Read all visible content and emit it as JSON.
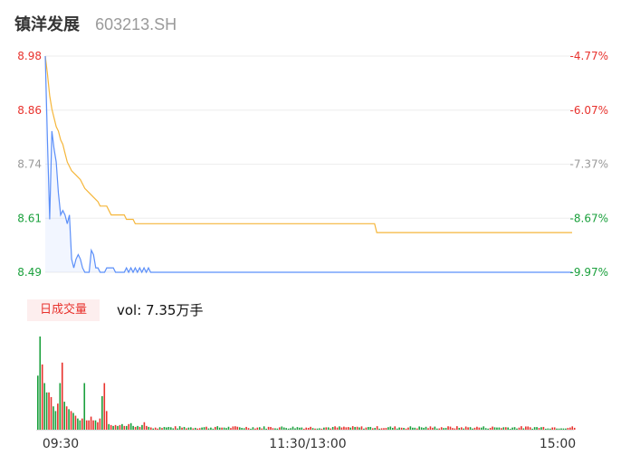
{
  "header": {
    "name": "镇洋发展",
    "code": "603213.SH"
  },
  "volume_panel": {
    "badge": "日成交量",
    "vol_label": "vol: 7.35万手"
  },
  "colors": {
    "price_line": "#5b8ff9",
    "avg_line": "#f5b63a",
    "up": "#e8322d",
    "down": "#1aa03c",
    "neutral": "#999999",
    "grid": "#eeeeee"
  },
  "chart_data": [
    {
      "type": "line",
      "title": "",
      "ylim": [
        8.49,
        8.98
      ],
      "y_ticks": [
        {
          "price": "8.98",
          "pct": "-4.77%",
          "color": "#e8322d"
        },
        {
          "price": "8.86",
          "pct": "-6.07%",
          "color": "#e8322d"
        },
        {
          "price": "8.74",
          "pct": "-7.37%",
          "color": "#999999"
        },
        {
          "price": "8.61",
          "pct": "-8.67%",
          "color": "#1aa03c"
        },
        {
          "price": "8.49",
          "pct": "-9.97%",
          "color": "#1aa03c"
        }
      ],
      "x_range": [
        0,
        240
      ],
      "series": [
        {
          "points": [
            [
              0,
              8.98
            ],
            [
              1,
              8.79
            ],
            [
              2,
              8.61
            ],
            [
              3,
              8.81
            ],
            [
              4,
              8.77
            ],
            [
              5,
              8.74
            ],
            [
              6,
              8.67
            ],
            [
              7,
              8.62
            ],
            [
              8,
              8.63
            ],
            [
              9,
              8.62
            ],
            [
              10,
              8.6
            ],
            [
              11,
              8.62
            ],
            [
              12,
              8.52
            ],
            [
              13,
              8.5
            ],
            [
              14,
              8.52
            ],
            [
              15,
              8.53
            ],
            [
              16,
              8.52
            ],
            [
              17,
              8.5
            ],
            [
              18,
              8.49
            ],
            [
              19,
              8.49
            ],
            [
              20,
              8.49
            ],
            [
              21,
              8.54
            ],
            [
              22,
              8.53
            ],
            [
              23,
              8.5
            ],
            [
              24,
              8.5
            ],
            [
              25,
              8.49
            ],
            [
              26,
              8.49
            ],
            [
              27,
              8.49
            ],
            [
              28,
              8.5
            ],
            [
              29,
              8.5
            ],
            [
              30,
              8.5
            ],
            [
              31,
              8.5
            ],
            [
              32,
              8.49
            ],
            [
              33,
              8.49
            ],
            [
              34,
              8.49
            ],
            [
              35,
              8.49
            ],
            [
              36,
              8.49
            ],
            [
              37,
              8.5
            ],
            [
              38,
              8.49
            ],
            [
              39,
              8.5
            ],
            [
              40,
              8.49
            ],
            [
              41,
              8.5
            ],
            [
              42,
              8.49
            ],
            [
              43,
              8.5
            ],
            [
              44,
              8.49
            ],
            [
              45,
              8.5
            ],
            [
              46,
              8.49
            ],
            [
              47,
              8.5
            ],
            [
              48,
              8.49
            ],
            [
              49,
              8.49
            ],
            [
              50,
              8.49
            ],
            [
              60,
              8.49
            ],
            [
              120,
              8.49
            ],
            [
              180,
              8.49
            ],
            [
              240,
              8.49
            ]
          ]
        },
        {
          "points": [
            [
              0,
              8.98
            ],
            [
              1,
              8.94
            ],
            [
              2,
              8.89
            ],
            [
              3,
              8.86
            ],
            [
              4,
              8.84
            ],
            [
              5,
              8.82
            ],
            [
              6,
              8.81
            ],
            [
              7,
              8.79
            ],
            [
              8,
              8.78
            ],
            [
              9,
              8.76
            ],
            [
              10,
              8.74
            ],
            [
              12,
              8.72
            ],
            [
              14,
              8.71
            ],
            [
              16,
              8.7
            ],
            [
              17,
              8.69
            ],
            [
              18,
              8.68
            ],
            [
              20,
              8.67
            ],
            [
              22,
              8.66
            ],
            [
              24,
              8.65
            ],
            [
              25,
              8.64
            ],
            [
              28,
              8.64
            ],
            [
              29,
              8.63
            ],
            [
              30,
              8.62
            ],
            [
              36,
              8.62
            ],
            [
              37,
              8.61
            ],
            [
              40,
              8.61
            ],
            [
              41,
              8.6
            ],
            [
              120,
              8.6
            ],
            [
              150,
              8.6
            ],
            [
              151,
              8.58
            ],
            [
              180,
              8.58
            ],
            [
              240,
              8.58
            ]
          ]
        }
      ]
    },
    {
      "type": "bar",
      "x_labels": [
        "09:30",
        "11:30/13:00",
        "15:00"
      ],
      "series": [
        {
          "values": [
            58,
            100,
            70,
            50,
            40,
            40,
            35,
            25,
            20,
            28,
            50,
            72,
            30,
            25,
            22,
            20,
            18,
            15,
            12,
            10,
            12,
            50,
            10,
            10,
            14,
            10,
            10,
            8,
            12,
            36,
            50,
            20,
            6,
            5,
            4,
            5,
            4,
            5,
            6,
            4,
            4,
            6,
            7,
            4,
            3,
            4,
            3,
            5,
            8,
            4,
            3
          ],
          "directions": [
            "d",
            "d",
            "u",
            "d",
            "d",
            "u",
            "u",
            "d",
            "d",
            "u",
            "d",
            "u",
            "d",
            "u",
            "d",
            "u",
            "d",
            "u",
            "d",
            "d",
            "u",
            "d",
            "u",
            "u",
            "u",
            "u",
            "d",
            "u",
            "u",
            "d",
            "u",
            "u",
            "d",
            "u",
            "d",
            "u",
            "d",
            "u",
            "d",
            "u",
            "d",
            "u",
            "d",
            "d",
            "u",
            "d",
            "u",
            "d",
            "u",
            "u",
            "d"
          ]
        }
      ]
    }
  ]
}
